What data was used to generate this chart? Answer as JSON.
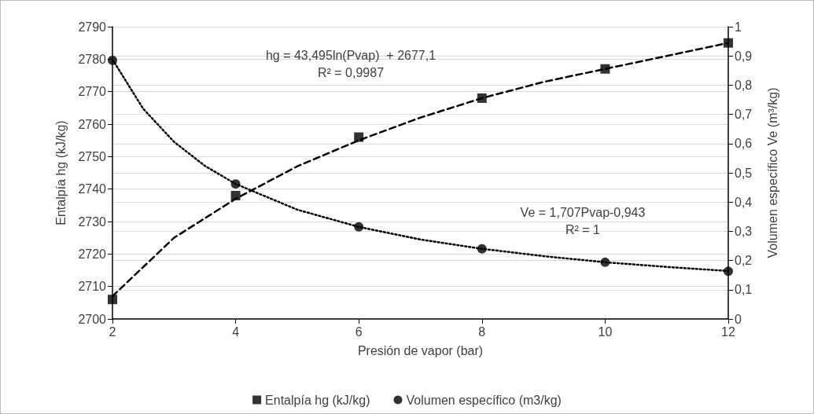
{
  "chart_data": {
    "type": "scatter",
    "xlabel": "Presión de vapor (bar)",
    "ylabel": "Entalpía hg (kJ/kg)",
    "y2label": "Volumen específico Ve (m³/kg)",
    "x": [
      2,
      4,
      6,
      8,
      10,
      12
    ],
    "series": [
      {
        "name": "Entalpía hg (kJ/kg)",
        "color": "#000000",
        "marker": "square",
        "values": [
          2706,
          2738,
          2756,
          2768,
          2777,
          2785
        ]
      },
      {
        "name": "Volumen específico (m3/kg)",
        "color": "#000000",
        "marker": "circle",
        "axis": "y2",
        "values": [
          0.885,
          0.462,
          0.315,
          0.24,
          0.194,
          0.163
        ]
      },
      {
        "color": "#000000",
        "type": "line",
        "line_style": "dashed",
        "marker": "none",
        "x": [
          2,
          3,
          4,
          5,
          6,
          7,
          8,
          9,
          10,
          11,
          12
        ],
        "values": [
          2707,
          2725,
          2737,
          2747,
          2755,
          2762,
          2768,
          2773,
          2777,
          2781,
          2785
        ]
      },
      {
        "color": "#000000",
        "type": "line",
        "line_style": "dotted",
        "marker": "none",
        "axis": "y2",
        "x": [
          2,
          2.5,
          3,
          3.5,
          4,
          5,
          6,
          7,
          8,
          9,
          10,
          11,
          12
        ],
        "values": [
          0.888,
          0.719,
          0.606,
          0.524,
          0.462,
          0.374,
          0.315,
          0.272,
          0.24,
          0.215,
          0.194,
          0.178,
          0.164
        ]
      }
    ],
    "xlim": [
      2,
      12
    ],
    "xticks": [
      2,
      4,
      6,
      8,
      10,
      12
    ],
    "ylim": [
      2700,
      2790
    ],
    "yticks": [
      2700,
      2710,
      2720,
      2730,
      2740,
      2750,
      2760,
      2770,
      2780,
      2790
    ],
    "y2lim": [
      0,
      1
    ],
    "y2ticks": [
      {
        "value": 0,
        "label": "0"
      },
      {
        "value": 0.1,
        "label": "0,1"
      },
      {
        "value": 0.2,
        "label": "0,2"
      },
      {
        "value": 0.3,
        "label": "0,3"
      },
      {
        "value": 0.4,
        "label": "0,4"
      },
      {
        "value": 0.5,
        "label": "0,5"
      },
      {
        "value": 0.6,
        "label": "0,6"
      },
      {
        "value": 0.7,
        "label": "0,7"
      },
      {
        "value": 0.8,
        "label": "0,8"
      },
      {
        "value": 0.9,
        "label": "0,9"
      },
      {
        "value": 1,
        "label": "1"
      }
    ],
    "annotations": [
      "hg = 43,495ln(Pvap)  + 2677,1\nR² = 0,9987",
      "Ve = 1,707Pvap-0,943\nR² = 1"
    ],
    "grid": "y",
    "legend": "bottom"
  }
}
